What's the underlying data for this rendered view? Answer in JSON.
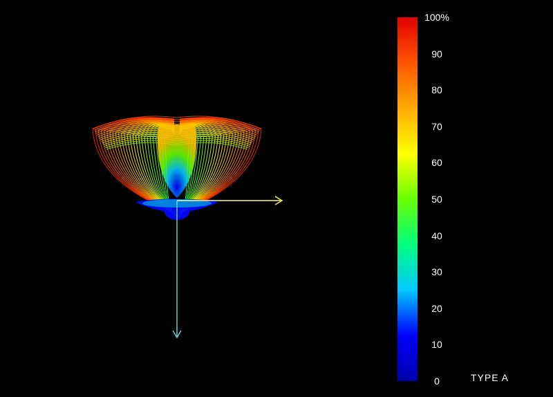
{
  "chart_data": {
    "type": "3d-radiation-pattern",
    "colorbar": {
      "min": 0,
      "max": 100,
      "tick_values": [
        100,
        90,
        80,
        70,
        60,
        50,
        40,
        30,
        20,
        10,
        0
      ],
      "tick_labels": [
        "100%",
        "90",
        "80",
        "70",
        "60",
        "50",
        "40",
        "30",
        "20",
        "10",
        "0"
      ],
      "colormap": [
        "#0000a8",
        "#0000ff",
        "#00c8ff",
        "#00ff80",
        "#66ff00",
        "#ffff00",
        "#ffaa00",
        "#ff5500",
        "#e00000"
      ]
    },
    "type_label": "TYPE A",
    "axes": {
      "x_axis_color": "#ffff66",
      "y_axis_color": "#66dddd"
    }
  }
}
